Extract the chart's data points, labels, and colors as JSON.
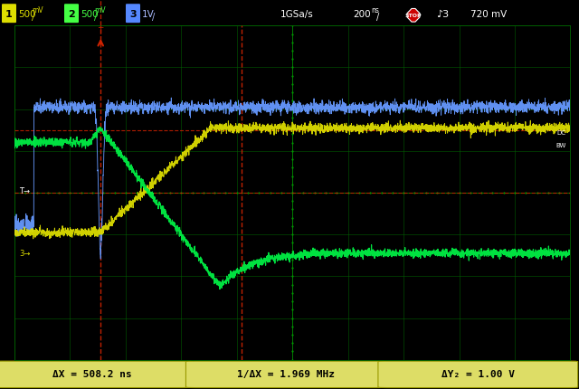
{
  "bg_color": "#000000",
  "header_bg": "#000000",
  "footer_bg": "#cccc55",
  "grid_color": "#006600",
  "grid_bright": "#008800",
  "cursor_red": "#cc2200",
  "ch1_color": "#6699ff",
  "ch2_color": "#dddd00",
  "ch3_color": "#00ee44",
  "footer_left": "ΔX = 508.2 ns",
  "footer_mid": "1/ΔX = 1.969 MHz",
  "footer_right": "ΔY₂ = 1.00 V",
  "ch1_noise": 0.07,
  "ch2_noise": 0.055,
  "ch3_noise": 0.05,
  "ch1_flat_y": 6.05,
  "ch1_spike_depth": 3.5,
  "ch2_start_y": 3.05,
  "ch2_end_y": 5.55,
  "ch2_ramp_start_x": 1.55,
  "ch2_ramp_end_x": 3.55,
  "ch3_start_y": 5.2,
  "ch3_peak_y": 5.55,
  "ch3_fall_end_x": 3.7,
  "ch3_dip_y": 1.45,
  "ch3_recover_x": 5.2,
  "ch3_settle_y": 2.55,
  "trigger_x": 1.55,
  "cursor_v2_x": 4.08,
  "cursor_h1_y": 5.5,
  "cursor_h2_y": 4.0,
  "xlim": [
    0,
    10
  ],
  "ylim": [
    0,
    8
  ],
  "n_hdiv": 10,
  "n_vdiv": 8
}
